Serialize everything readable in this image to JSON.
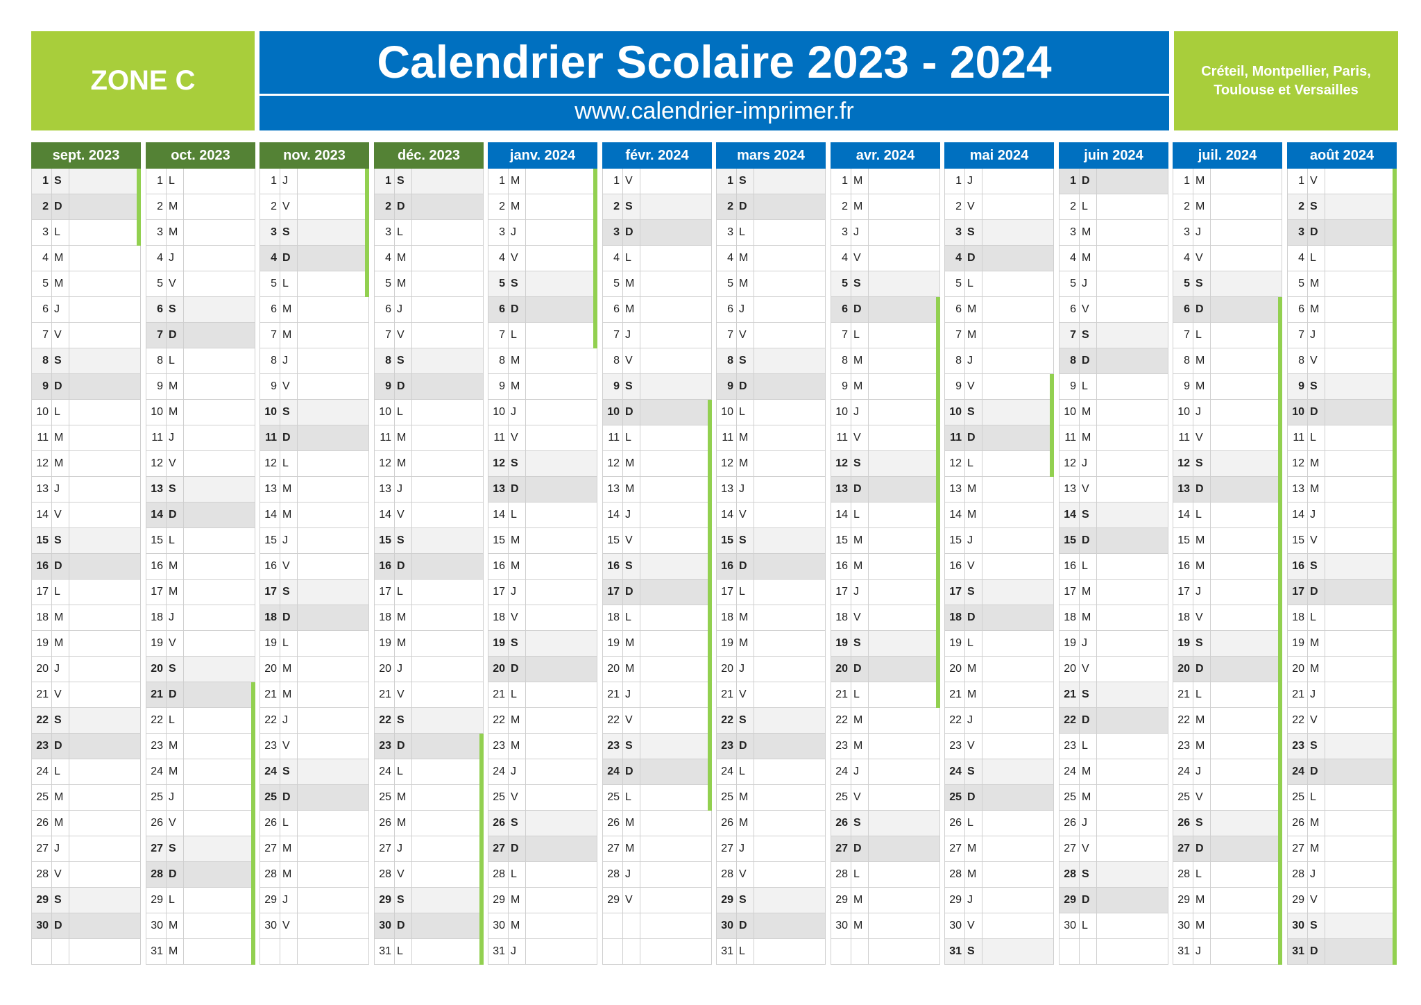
{
  "header": {
    "zone": "ZONE C",
    "title": "Calendrier Scolaire 2023 - 2024",
    "website": "www.calendrier-imprimer.fr",
    "cities": [
      "Créteil, Montpellier, Paris,",
      "Toulouse et Versailles"
    ]
  },
  "colors": {
    "green_accent": "#a8ce3b",
    "dark_green_header": "#548235",
    "blue": "#0070c0",
    "holiday_bar": "#92d050",
    "saturday_bg": "#f2f2f2",
    "sunday_bg": "#e2e2e2"
  },
  "months": [
    {
      "label": "sept. 2023",
      "start": 5,
      "days": 30,
      "holidays": [
        1,
        2,
        3
      ]
    },
    {
      "label": "oct. 2023",
      "start": 0,
      "days": 31,
      "holidays": [
        21,
        22,
        23,
        24,
        25,
        26,
        27,
        28,
        29,
        30,
        31
      ]
    },
    {
      "label": "nov. 2023",
      "start": 3,
      "days": 30,
      "holidays": [
        1,
        2,
        3,
        4,
        5
      ]
    },
    {
      "label": "déc. 2023",
      "start": 5,
      "days": 31,
      "holidays": [
        23,
        24,
        25,
        26,
        27,
        28,
        29,
        30,
        31
      ]
    },
    {
      "label": "janv. 2024",
      "start": 1,
      "days": 31,
      "holidays": [
        1,
        2,
        3,
        4,
        5,
        6,
        7
      ]
    },
    {
      "label": "févr. 2024",
      "start": 4,
      "days": 29,
      "holidays": [
        10,
        11,
        12,
        13,
        14,
        15,
        16,
        17,
        18,
        19,
        20,
        21,
        22,
        23,
        24,
        25
      ]
    },
    {
      "label": "mars 2024",
      "start": 5,
      "days": 31,
      "holidays": []
    },
    {
      "label": "avr. 2024",
      "start": 1,
      "days": 30,
      "holidays": [
        6,
        7,
        8,
        9,
        10,
        11,
        12,
        13,
        14,
        15,
        16,
        17,
        18,
        19,
        20,
        21
      ]
    },
    {
      "label": "mai 2024",
      "start": 3,
      "days": 31,
      "holidays": [
        9,
        10,
        11,
        12
      ]
    },
    {
      "label": "juin 2024",
      "start": 6,
      "days": 30,
      "holidays": []
    },
    {
      "label": "juil. 2024",
      "start": 1,
      "days": 31,
      "holidays": [
        6,
        7,
        8,
        9,
        10,
        11,
        12,
        13,
        14,
        15,
        16,
        17,
        18,
        19,
        20,
        21,
        22,
        23,
        24,
        25,
        26,
        27,
        28,
        29,
        30,
        31
      ]
    },
    {
      "label": "août 2024",
      "start": 4,
      "days": 31,
      "holidays": [
        1,
        2,
        3,
        4,
        5,
        6,
        7,
        8,
        9,
        10,
        11,
        12,
        13,
        14,
        15,
        16,
        17,
        18,
        19,
        20,
        21,
        22,
        23,
        24,
        25,
        26,
        27,
        28,
        29,
        30,
        31
      ]
    }
  ],
  "weekday_letters": [
    "L",
    "M",
    "M",
    "J",
    "V",
    "S",
    "D"
  ]
}
